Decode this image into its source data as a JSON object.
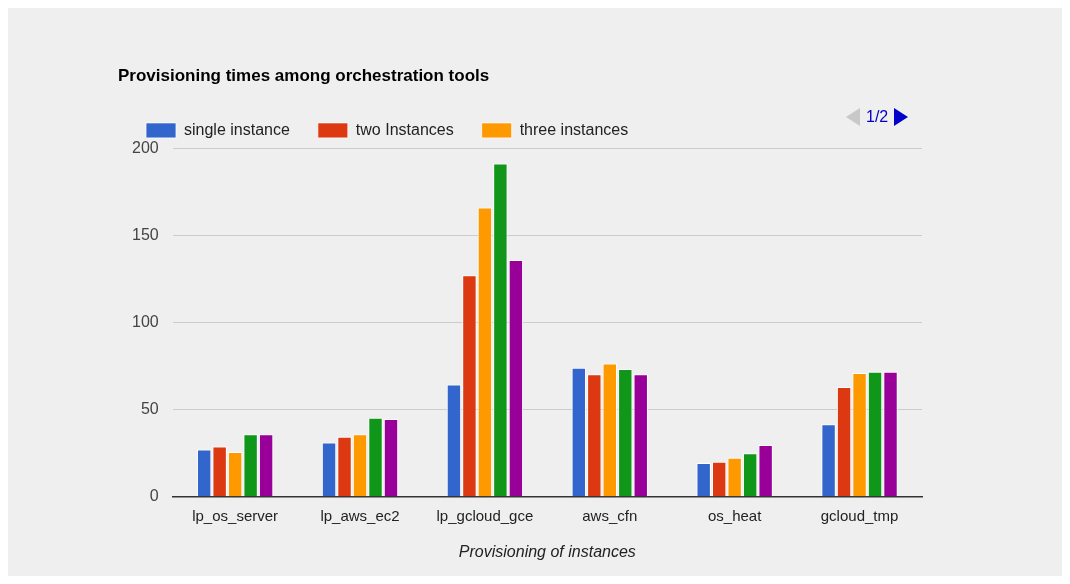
{
  "chart_data": {
    "type": "bar",
    "title": "Provisioning times among orchestration tools",
    "xlabel": "Provisioning of instances",
    "categories": [
      "lp_os_server",
      "lp_aws_ec2",
      "lp_gcloud_gce",
      "aws_cfn",
      "os_heat",
      "gcloud_tmp"
    ],
    "series": [
      {
        "name": "single instance",
        "color": "#3366cc",
        "values": [
          27.2,
          31.1,
          64.4,
          74.1,
          19.4,
          41.6
        ]
      },
      {
        "name": "two Instances",
        "color": "#dc3912",
        "values": [
          28.9,
          34.5,
          127.2,
          70.3,
          20.1,
          63.1
        ]
      },
      {
        "name": "three instances",
        "color": "#ff9900",
        "values": [
          25.7,
          35.9,
          166.1,
          76.5,
          22.4,
          71.1
        ]
      },
      {
        "color": "#109618",
        "values": [
          35.9,
          45.4,
          191.4,
          73.3,
          25.0,
          71.8
        ]
      },
      {
        "color": "#990099",
        "values": [
          35.9,
          44.7,
          135.9,
          70.3,
          29.7,
          71.8
        ]
      }
    ],
    "ylim": [
      0,
      200
    ],
    "yticks": [
      0,
      50,
      100,
      150,
      200
    ],
    "grid": "y",
    "legend": "top left",
    "annotations": [
      "1/2"
    ]
  }
}
